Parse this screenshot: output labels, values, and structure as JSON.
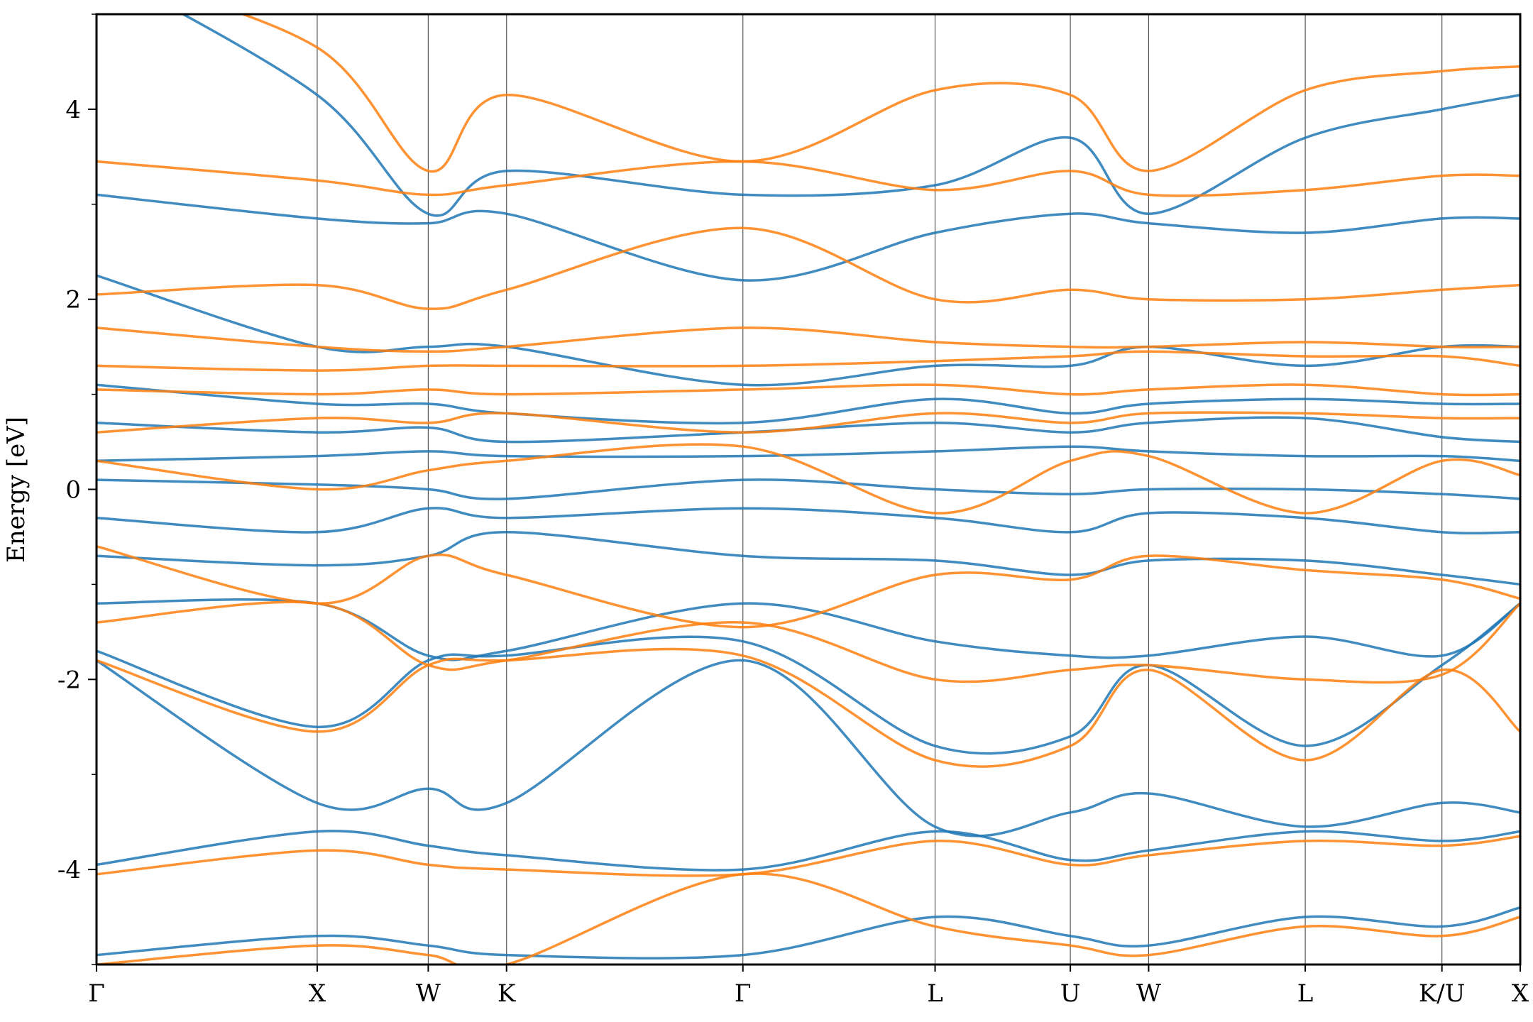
{
  "chart_data": {
    "type": "line",
    "title": "",
    "xlabel": "",
    "ylabel": "Energy [eV]",
    "ylim": [
      -5,
      5
    ],
    "xlim": [
      0,
      1
    ],
    "y_ticks": [
      -4,
      -2,
      0,
      2,
      4
    ],
    "y_ticklabels": [
      "-4",
      "-2",
      "0",
      "2",
      "4"
    ],
    "y_minor_ticks": [
      -5,
      -3,
      -1,
      1,
      3,
      5
    ],
    "x_ticks": [
      {
        "label": "Γ",
        "x": 0.0
      },
      {
        "label": "X",
        "x": 0.155
      },
      {
        "label": "W",
        "x": 0.233
      },
      {
        "label": "K",
        "x": 0.288
      },
      {
        "label": "Γ",
        "x": 0.454
      },
      {
        "label": "L",
        "x": 0.589
      },
      {
        "label": "U",
        "x": 0.684
      },
      {
        "label": "W",
        "x": 0.739
      },
      {
        "label": "L",
        "x": 0.849
      },
      {
        "label": "K/U",
        "x": 0.945
      },
      {
        "label": "X",
        "x": 1.0
      }
    ],
    "grid": "vertical lines at high-symmetry points",
    "legend": "none",
    "colors": {
      "spin_up": "#1f77b4",
      "spin_down": "#ff7f0e"
    },
    "series": [
      {
        "color": "spin_up",
        "x": [
          0.0,
          0.155,
          0.233,
          0.288,
          0.454,
          0.589,
          0.684,
          0.739,
          0.849,
          0.945,
          1.0
        ],
        "y": [
          -4.9,
          -4.7,
          -4.8,
          -4.9,
          -4.9,
          -4.5,
          -4.7,
          -4.8,
          -4.5,
          -4.6,
          -4.4
        ]
      },
      {
        "color": "spin_up",
        "x": [
          0.0,
          0.155,
          0.233,
          0.288,
          0.454,
          0.589,
          0.684,
          0.739,
          0.849,
          0.945,
          1.0
        ],
        "y": [
          -3.95,
          -3.6,
          -3.75,
          -3.85,
          -4.0,
          -3.6,
          -3.9,
          -3.8,
          -3.6,
          -3.7,
          -3.6
        ]
      },
      {
        "color": "spin_up",
        "x": [
          0.0,
          0.155,
          0.233,
          0.288,
          0.454,
          0.589,
          0.684,
          0.739,
          0.849,
          0.945,
          1.0
        ],
        "y": [
          -1.8,
          -3.3,
          -3.15,
          -3.3,
          -1.8,
          -3.55,
          -3.4,
          -3.2,
          -3.55,
          -3.3,
          -3.4
        ]
      },
      {
        "color": "spin_up",
        "x": [
          0.0,
          0.155,
          0.233,
          0.288,
          0.454,
          0.589,
          0.684,
          0.739,
          0.849,
          0.945,
          1.0
        ],
        "y": [
          -1.7,
          -2.5,
          -1.8,
          -1.75,
          -1.6,
          -2.7,
          -2.6,
          -1.85,
          -2.7,
          -1.85,
          -1.2
        ]
      },
      {
        "color": "spin_up",
        "x": [
          0.0,
          0.155,
          0.233,
          0.288,
          0.454,
          0.589,
          0.684,
          0.739,
          0.849,
          0.945,
          1.0
        ],
        "y": [
          -1.2,
          -1.2,
          -1.75,
          -1.7,
          -1.2,
          -1.6,
          -1.75,
          -1.75,
          -1.55,
          -1.75,
          -1.2
        ]
      },
      {
        "color": "spin_up",
        "x": [
          0.0,
          0.155,
          0.233,
          0.288,
          0.454,
          0.589,
          0.684,
          0.739,
          0.849,
          0.945,
          1.0
        ],
        "y": [
          -0.7,
          -0.8,
          -0.7,
          -0.45,
          -0.7,
          -0.75,
          -0.9,
          -0.75,
          -0.75,
          -0.9,
          -1.0
        ]
      },
      {
        "color": "spin_up",
        "x": [
          0.0,
          0.155,
          0.233,
          0.288,
          0.454,
          0.589,
          0.684,
          0.739,
          0.849,
          0.945,
          1.0
        ],
        "y": [
          -0.3,
          -0.45,
          -0.2,
          -0.3,
          -0.2,
          -0.3,
          -0.45,
          -0.25,
          -0.3,
          -0.45,
          -0.45
        ]
      },
      {
        "color": "spin_up",
        "x": [
          0.0,
          0.155,
          0.233,
          0.288,
          0.454,
          0.589,
          0.684,
          0.739,
          0.849,
          0.945,
          1.0
        ],
        "y": [
          0.1,
          0.05,
          0.0,
          -0.1,
          0.1,
          0.0,
          -0.05,
          0.0,
          0.0,
          -0.05,
          -0.1
        ]
      },
      {
        "color": "spin_up",
        "x": [
          0.0,
          0.155,
          0.233,
          0.288,
          0.454,
          0.589,
          0.684,
          0.739,
          0.849,
          0.945,
          1.0
        ],
        "y": [
          0.3,
          0.35,
          0.4,
          0.35,
          0.35,
          0.4,
          0.45,
          0.4,
          0.35,
          0.35,
          0.3
        ]
      },
      {
        "color": "spin_up",
        "x": [
          0.0,
          0.155,
          0.233,
          0.288,
          0.454,
          0.589,
          0.684,
          0.739,
          0.849,
          0.945,
          1.0
        ],
        "y": [
          0.7,
          0.6,
          0.65,
          0.5,
          0.6,
          0.7,
          0.6,
          0.7,
          0.75,
          0.55,
          0.5
        ]
      },
      {
        "color": "spin_up",
        "x": [
          0.0,
          0.155,
          0.233,
          0.288,
          0.454,
          0.589,
          0.684,
          0.739,
          0.849,
          0.945,
          1.0
        ],
        "y": [
          1.1,
          0.9,
          0.9,
          0.8,
          0.7,
          0.95,
          0.8,
          0.9,
          0.95,
          0.9,
          0.9
        ]
      },
      {
        "color": "spin_up",
        "x": [
          0.0,
          0.155,
          0.233,
          0.288,
          0.454,
          0.589,
          0.684,
          0.739,
          0.849,
          0.945,
          1.0
        ],
        "y": [
          2.25,
          1.5,
          1.5,
          1.5,
          1.1,
          1.3,
          1.3,
          1.5,
          1.3,
          1.5,
          1.5
        ]
      },
      {
        "color": "spin_up",
        "x": [
          0.0,
          0.155,
          0.233,
          0.288,
          0.454,
          0.589,
          0.684,
          0.739,
          0.849,
          0.945,
          1.0
        ],
        "y": [
          3.1,
          2.85,
          2.8,
          2.9,
          2.2,
          2.7,
          2.9,
          2.8,
          2.7,
          2.85,
          2.85
        ]
      },
      {
        "color": "spin_up",
        "x": [
          0.0,
          0.155,
          0.233,
          0.288,
          0.454,
          0.589,
          0.684,
          0.739,
          0.849,
          0.945,
          1.0
        ],
        "y": [
          5.5,
          4.15,
          2.9,
          3.35,
          3.1,
          3.2,
          3.7,
          2.9,
          3.7,
          4.0,
          4.15
        ]
      },
      {
        "color": "spin_down",
        "x": [
          0.0,
          0.155,
          0.233,
          0.288,
          0.454,
          0.589,
          0.684,
          0.739,
          0.849,
          0.945,
          1.0
        ],
        "y": [
          -5.0,
          -4.8,
          -4.9,
          -5.0,
          -4.05,
          -4.6,
          -4.8,
          -4.9,
          -4.6,
          -4.7,
          -4.5
        ]
      },
      {
        "color": "spin_down",
        "x": [
          0.0,
          0.155,
          0.233,
          0.288,
          0.454,
          0.589,
          0.684,
          0.739,
          0.849,
          0.945,
          1.0
        ],
        "y": [
          -4.05,
          -3.8,
          -3.95,
          -4.0,
          -4.05,
          -3.7,
          -3.95,
          -3.85,
          -3.7,
          -3.75,
          -3.65
        ]
      },
      {
        "color": "spin_down",
        "x": [
          0.0,
          0.155,
          0.233,
          0.288,
          0.454,
          0.589,
          0.684,
          0.739,
          0.849,
          0.945,
          1.0
        ],
        "y": [
          -1.8,
          -2.55,
          -1.85,
          -1.8,
          -1.75,
          -2.85,
          -2.7,
          -1.9,
          -2.85,
          -1.9,
          -2.55
        ]
      },
      {
        "color": "spin_down",
        "x": [
          0.0,
          0.155,
          0.233,
          0.288,
          0.454,
          0.589,
          0.684,
          0.739,
          0.849,
          0.945,
          1.0
        ],
        "y": [
          -1.4,
          -1.2,
          -1.85,
          -1.8,
          -1.4,
          -2.0,
          -1.9,
          -1.85,
          -2.0,
          -1.95,
          -1.2
        ]
      },
      {
        "color": "spin_down",
        "x": [
          0.0,
          0.155,
          0.233,
          0.288,
          0.454,
          0.589,
          0.684,
          0.739,
          0.849,
          0.945,
          1.0
        ],
        "y": [
          -0.6,
          -1.2,
          -0.7,
          -0.9,
          -1.45,
          -0.9,
          -0.95,
          -0.7,
          -0.85,
          -0.95,
          -1.15
        ]
      },
      {
        "color": "spin_down",
        "x": [
          0.0,
          0.155,
          0.233,
          0.288,
          0.454,
          0.589,
          0.684,
          0.739,
          0.849,
          0.945,
          1.0
        ],
        "y": [
          0.3,
          0.0,
          0.2,
          0.3,
          0.45,
          -0.25,
          0.3,
          0.35,
          -0.25,
          0.3,
          0.15
        ]
      },
      {
        "color": "spin_down",
        "x": [
          0.0,
          0.155,
          0.233,
          0.288,
          0.454,
          0.589,
          0.684,
          0.739,
          0.849,
          0.945,
          1.0
        ],
        "y": [
          0.6,
          0.75,
          0.7,
          0.8,
          0.6,
          0.8,
          0.7,
          0.8,
          0.8,
          0.75,
          0.75
        ]
      },
      {
        "color": "spin_down",
        "x": [
          0.0,
          0.155,
          0.233,
          0.288,
          0.454,
          0.589,
          0.684,
          0.739,
          0.849,
          0.945,
          1.0
        ],
        "y": [
          1.05,
          1.0,
          1.05,
          1.0,
          1.05,
          1.1,
          1.0,
          1.05,
          1.1,
          1.0,
          1.0
        ]
      },
      {
        "color": "spin_down",
        "x": [
          0.0,
          0.155,
          0.233,
          0.288,
          0.454,
          0.589,
          0.684,
          0.739,
          0.849,
          0.945,
          1.0
        ],
        "y": [
          1.3,
          1.25,
          1.3,
          1.3,
          1.3,
          1.35,
          1.4,
          1.45,
          1.4,
          1.4,
          1.3
        ]
      },
      {
        "color": "spin_down",
        "x": [
          0.0,
          0.155,
          0.233,
          0.288,
          0.454,
          0.589,
          0.684,
          0.739,
          0.849,
          0.945,
          1.0
        ],
        "y": [
          1.7,
          1.5,
          1.45,
          1.5,
          1.7,
          1.55,
          1.5,
          1.5,
          1.55,
          1.5,
          1.5
        ]
      },
      {
        "color": "spin_down",
        "x": [
          0.0,
          0.155,
          0.233,
          0.288,
          0.454,
          0.589,
          0.684,
          0.739,
          0.849,
          0.945,
          1.0
        ],
        "y": [
          2.05,
          2.15,
          1.9,
          2.1,
          2.75,
          2.0,
          2.1,
          2.0,
          2.0,
          2.1,
          2.15
        ]
      },
      {
        "color": "spin_down",
        "x": [
          0.0,
          0.155,
          0.233,
          0.288,
          0.454,
          0.589,
          0.684,
          0.739,
          0.849,
          0.945,
          1.0
        ],
        "y": [
          3.45,
          3.25,
          3.1,
          3.2,
          3.45,
          3.15,
          3.35,
          3.1,
          3.15,
          3.3,
          3.3
        ]
      },
      {
        "color": "spin_down",
        "x": [
          0.0,
          0.155,
          0.233,
          0.288,
          0.454,
          0.589,
          0.684,
          0.739,
          0.849,
          0.945,
          1.0
        ],
        "y": [
          5.5,
          4.65,
          3.35,
          4.15,
          3.45,
          4.2,
          4.15,
          3.35,
          4.2,
          4.4,
          4.45
        ]
      }
    ]
  }
}
